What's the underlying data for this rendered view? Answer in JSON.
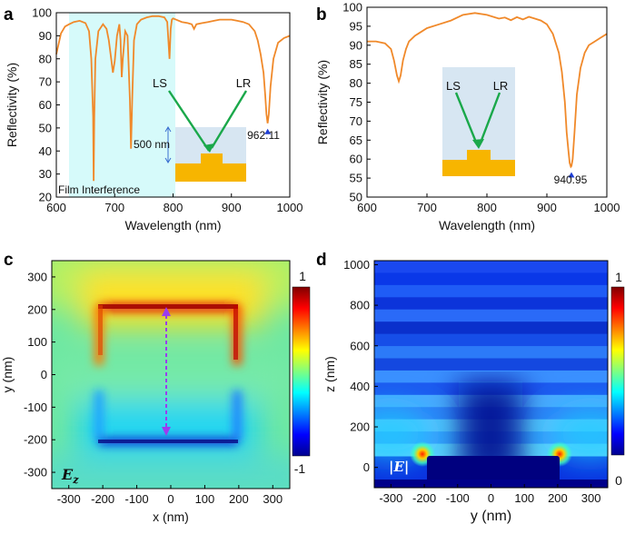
{
  "colors": {
    "curve": "#f0892a",
    "film_band": "#d6fafa",
    "marker": "#1f3fd6",
    "inset_bg": "#d7e6f2",
    "gold": "#f7b500",
    "arrow_green": "#1aa84a",
    "dipole": "#9b3cf0"
  },
  "chart_data": [
    {
      "type": "line",
      "panel": "a",
      "xlabel": "Wavelength (nm)",
      "ylabel": "Reflectivity (%)",
      "xlim": [
        600,
        1000
      ],
      "ylim": [
        20,
        100
      ],
      "xticks": [
        "600",
        "700",
        "800",
        "900",
        "1000"
      ],
      "yticks": [
        "20",
        "30",
        "40",
        "50",
        "60",
        "70",
        "80",
        "90",
        "100"
      ],
      "series": [
        {
          "name": "Reflectivity",
          "x": [
            600,
            608,
            615,
            622,
            630,
            640,
            650,
            656,
            660,
            663,
            664,
            665,
            667,
            672,
            680,
            686,
            690,
            694,
            697,
            700,
            704,
            708,
            710,
            712,
            714,
            718,
            722,
            726,
            728,
            730,
            733,
            738,
            745,
            755,
            765,
            775,
            785,
            790,
            794,
            796,
            798,
            800,
            805,
            815,
            825,
            832,
            836,
            840,
            850,
            860,
            870,
            880,
            890,
            900,
            910,
            920,
            930,
            940,
            945,
            950,
            955,
            958,
            960,
            962,
            964,
            967,
            972,
            980,
            990,
            1000
          ],
          "y": [
            82,
            91,
            94,
            95,
            96,
            96.5,
            95.5,
            92,
            80,
            55,
            27,
            55,
            80,
            92,
            95,
            93,
            88,
            80,
            74,
            79,
            90,
            95,
            88,
            72,
            80,
            92,
            90,
            62,
            41,
            62,
            88,
            95,
            97,
            98,
            98.5,
            98.5,
            98,
            96,
            80,
            93,
            97,
            97.5,
            97,
            96,
            95.5,
            95,
            93,
            95,
            95.5,
            96,
            96.5,
            97,
            97,
            97,
            96.5,
            96,
            95,
            92,
            88,
            82,
            74,
            64,
            56,
            52,
            56,
            68,
            80,
            87,
            89,
            90
          ]
        }
      ],
      "annotations": {
        "marker_label": "962.11",
        "band_label": "Film Interference",
        "ls": "LS",
        "lr": "LR",
        "thickness": "500 nm"
      }
    },
    {
      "type": "line",
      "panel": "b",
      "xlabel": "Wavelength (nm)",
      "ylabel": "Reflectivity (%)",
      "xlim": [
        600,
        1000
      ],
      "ylim": [
        50,
        100
      ],
      "xticks": [
        "600",
        "700",
        "800",
        "900",
        "1000"
      ],
      "yticks": [
        "50",
        "55",
        "60",
        "65",
        "70",
        "75",
        "80",
        "85",
        "90",
        "95",
        "100"
      ],
      "series": [
        {
          "name": "Reflectivity",
          "x": [
            600,
            615,
            630,
            640,
            645,
            650,
            653,
            656,
            660,
            665,
            670,
            680,
            690,
            700,
            720,
            740,
            760,
            780,
            800,
            820,
            830,
            840,
            850,
            860,
            870,
            880,
            890,
            900,
            910,
            920,
            925,
            930,
            933,
            936,
            938,
            940,
            941,
            943,
            946,
            950,
            956,
            963,
            970,
            980,
            990,
            1000
          ],
          "y": [
            91,
            91,
            90.5,
            89,
            86,
            82,
            80.5,
            82,
            86,
            89,
            91,
            92.5,
            93.5,
            94.5,
            95.5,
            96.5,
            98,
            98.5,
            98,
            97,
            97.3,
            96.6,
            97.4,
            96.8,
            97.5,
            97,
            96.5,
            95.5,
            93,
            88,
            83,
            75,
            67,
            62,
            59,
            58,
            58.2,
            60,
            67,
            77,
            84,
            88,
            90,
            91,
            92,
            93
          ]
        }
      ],
      "annotations": {
        "marker_label": "940.95",
        "ls": "LS",
        "lr": "LR"
      }
    },
    {
      "type": "heatmap",
      "panel": "c",
      "xlabel": "x (nm)",
      "ylabel": "y (nm)",
      "xlim": [
        -350,
        350
      ],
      "ylim": [
        -350,
        350
      ],
      "xticks": [
        "-300",
        "-200",
        "-100",
        "0",
        "100",
        "200",
        "300"
      ],
      "yticks": [
        "-300",
        "-200",
        "-100",
        "0",
        "100",
        "200",
        "300"
      ],
      "colorbar": {
        "min": "-1",
        "max": "1"
      },
      "field_label": "E",
      "field_sub": "z"
    },
    {
      "type": "heatmap",
      "panel": "d",
      "xlabel": "y (nm)",
      "ylabel": "z (nm)",
      "xlim": [
        -350,
        350
      ],
      "ylim": [
        -100,
        1020
      ],
      "xticks": [
        "-300",
        "-200",
        "-100",
        "0",
        "100",
        "200",
        "300"
      ],
      "yticks": [
        "0",
        "200",
        "400",
        "600",
        "800",
        "1000"
      ],
      "colorbar": {
        "min": "0",
        "max": "1"
      },
      "field_label": "|E|"
    }
  ],
  "panel_letters": [
    "a",
    "b",
    "c",
    "d"
  ]
}
